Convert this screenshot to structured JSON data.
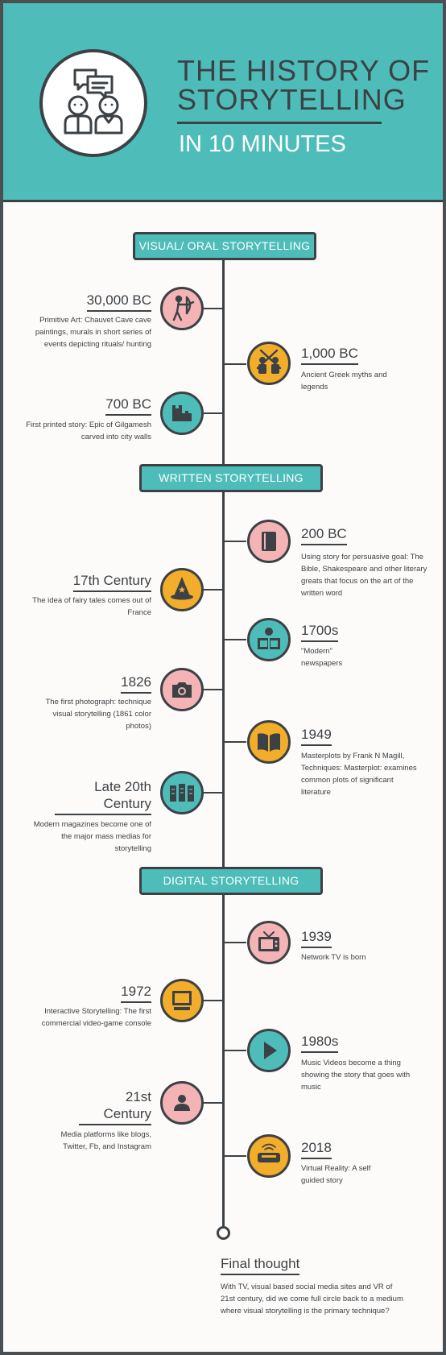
{
  "header": {
    "title_line1": "THE HISTORY OF",
    "title_line2": "STORYTELLING",
    "subtitle": "IN 10 MINUTES"
  },
  "sections": [
    {
      "label": "VISUAL/ ORAL STORYTELLING"
    },
    {
      "label": "WRITTEN STORYTELLING"
    },
    {
      "label": "DIGITAL STORYTELLING"
    }
  ],
  "events": [
    {
      "year": "30,000 BC",
      "description": "Primitive Art: Chauvet Cave cave paintings, murals in short series of events depicting rituals/ hunting",
      "side": "left",
      "color": "pink",
      "icon": "archer-icon"
    },
    {
      "year": "1,000 BC",
      "description": "Ancient Greek myths and legends",
      "side": "right",
      "color": "yellow",
      "icon": "warriors-icon"
    },
    {
      "year": "700 BC",
      "description": "First printed story: Epic of Gilgamesh carved into city walls",
      "side": "left",
      "color": "teal",
      "icon": "castle-wall-icon"
    },
    {
      "year": "200  BC",
      "description": "Using story for persuasive goal: The Bible, Shakespeare and other literary greats that focus on the art of the written word",
      "side": "right",
      "color": "pink",
      "icon": "book-icon"
    },
    {
      "year": "17th Century",
      "description": "The idea of fairy tales comes out of France",
      "side": "left",
      "color": "yellow",
      "icon": "wizard-hat-icon"
    },
    {
      "year": "1700s",
      "description": "\"Modern\" newspapers",
      "side": "right",
      "color": "teal",
      "icon": "newspaper-reader-icon"
    },
    {
      "year": "1826",
      "description": "The first photograph: technique visual storytelling (1861 color photos)",
      "side": "left",
      "color": "pink",
      "icon": "camera-icon"
    },
    {
      "year": "1949",
      "description": "Masterplots by Frank N Magill, Techniques: Masterplot: examines common plots of significant literature",
      "side": "right",
      "color": "yellow",
      "icon": "open-book-icon"
    },
    {
      "year": "Late 20th Century",
      "description": "Modern magazines become one of the major mass medias for storytelling",
      "side": "left",
      "color": "teal",
      "icon": "magazine-icon"
    },
    {
      "year": "1939",
      "description": "Network TV is born",
      "side": "right",
      "color": "pink",
      "icon": "tv-icon"
    },
    {
      "year": "1972",
      "description": "Interactive Storytelling: The first commercial video-game console",
      "side": "left",
      "color": "yellow",
      "icon": "computer-icon"
    },
    {
      "year": "1980s",
      "description": "Music Videos become a thing showing the story that goes with music",
      "side": "right",
      "color": "teal",
      "icon": "play-icon"
    },
    {
      "year": "21st Century",
      "description": "Media platforms like blogs, Twitter, Fb, and Instagram",
      "side": "left",
      "color": "pink",
      "icon": "user-icon"
    },
    {
      "year": "2018",
      "description": "Virtual Reality: A self guided story",
      "side": "right",
      "color": "yellow",
      "icon": "vr-headset-icon"
    }
  ],
  "final": {
    "title": "Final thought",
    "text": "With TV, visual based social media sites and VR of 21st century, did we come full circle back to a medium where visual storytelling is the primary technique?"
  }
}
